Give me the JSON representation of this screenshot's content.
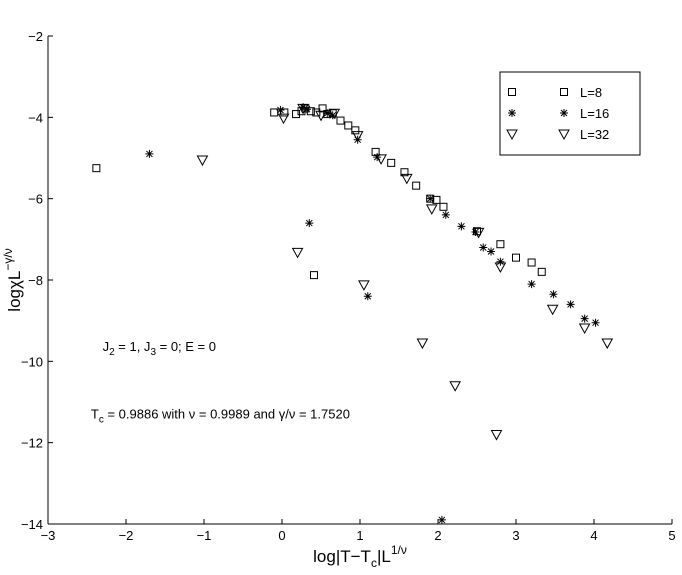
{
  "chart_data": {
    "type": "scatter",
    "xlim": [
      -3,
      5
    ],
    "ylim": [
      -14,
      -2
    ],
    "x_ticks": [
      -3,
      -2,
      -1,
      0,
      1,
      2,
      3,
      4,
      5
    ],
    "y_ticks": [
      -14,
      -12,
      -10,
      -8,
      -6,
      -4,
      -2
    ],
    "x_tick_labels": [
      "−3",
      "−2",
      "−1",
      "0",
      "1",
      "2",
      "3",
      "4",
      "5"
    ],
    "y_tick_labels": [
      "−14",
      "−12",
      "−10",
      "−8",
      "−6",
      "−4",
      "−2"
    ],
    "xlabel": {
      "main": "log|T−T",
      "sub": "c",
      "after": "|L",
      "sup": "1/ν"
    },
    "ylabel": {
      "main": "logχL",
      "sup": "−γ/ν"
    },
    "grid": false,
    "legend_position": "top-right",
    "series": [
      {
        "name": "L=8",
        "marker": "square",
        "points": [
          [
            -2.38,
            -5.25
          ],
          [
            -0.1,
            -3.88
          ],
          [
            0.03,
            -3.88
          ],
          [
            0.18,
            -3.92
          ],
          [
            0.25,
            -3.85
          ],
          [
            0.3,
            -3.78
          ],
          [
            0.37,
            -3.85
          ],
          [
            0.44,
            -3.88
          ],
          [
            0.52,
            -3.78
          ],
          [
            0.58,
            -3.92
          ],
          [
            0.65,
            -3.9
          ],
          [
            0.75,
            -4.08
          ],
          [
            0.85,
            -4.2
          ],
          [
            0.94,
            -4.32
          ],
          [
            1.2,
            -4.85
          ],
          [
            1.4,
            -5.12
          ],
          [
            1.57,
            -5.35
          ],
          [
            1.72,
            -5.68
          ],
          [
            1.9,
            -6.0
          ],
          [
            1.98,
            -6.03
          ],
          [
            2.07,
            -6.2
          ],
          [
            2.5,
            -6.8
          ],
          [
            2.8,
            -7.12
          ],
          [
            3.0,
            -7.45
          ],
          [
            3.2,
            -7.57
          ],
          [
            3.33,
            -7.8
          ],
          [
            0.41,
            -7.88
          ]
        ]
      },
      {
        "name": "L=16",
        "marker": "star",
        "points": [
          [
            -1.7,
            -4.9
          ],
          [
            -0.02,
            -3.82
          ],
          [
            0.27,
            -3.75
          ],
          [
            0.32,
            -3.8
          ],
          [
            0.58,
            -3.9
          ],
          [
            0.65,
            -3.95
          ],
          [
            0.97,
            -4.55
          ],
          [
            1.22,
            -4.98
          ],
          [
            1.9,
            -6.0
          ],
          [
            2.1,
            -6.4
          ],
          [
            2.3,
            -6.68
          ],
          [
            2.48,
            -6.82
          ],
          [
            2.58,
            -7.2
          ],
          [
            2.68,
            -7.3
          ],
          [
            2.8,
            -7.55
          ],
          [
            3.2,
            -8.1
          ],
          [
            3.48,
            -8.35
          ],
          [
            3.7,
            -8.6
          ],
          [
            3.88,
            -8.95
          ],
          [
            4.02,
            -9.05
          ],
          [
            0.35,
            -6.6
          ],
          [
            1.1,
            -8.4
          ],
          [
            2.05,
            -13.9
          ]
        ]
      },
      {
        "name": "L=32",
        "marker": "triangle-down",
        "points": [
          [
            -1.02,
            -5.05
          ],
          [
            0.02,
            -4.02
          ],
          [
            0.27,
            -3.78
          ],
          [
            0.5,
            -3.95
          ],
          [
            0.67,
            -3.9
          ],
          [
            0.97,
            -4.45
          ],
          [
            1.27,
            -5.02
          ],
          [
            1.6,
            -5.5
          ],
          [
            1.92,
            -6.25
          ],
          [
            2.52,
            -6.83
          ],
          [
            2.8,
            -7.68
          ],
          [
            3.47,
            -8.72
          ],
          [
            3.88,
            -9.18
          ],
          [
            4.17,
            -9.55
          ],
          [
            0.2,
            -7.32
          ],
          [
            1.05,
            -8.12
          ],
          [
            1.8,
            -9.55
          ],
          [
            2.22,
            -10.6
          ],
          [
            2.75,
            -11.8
          ]
        ]
      }
    ],
    "annotations": [
      {
        "id": "params",
        "x": -2.3,
        "y": -9.75,
        "parts": [
          {
            "t": "J"
          },
          {
            "t": "2",
            "sub": true
          },
          {
            "t": " = 1, J"
          },
          {
            "t": "3",
            "sub": true
          },
          {
            "t": " = 0; E = 0"
          }
        ]
      },
      {
        "id": "tc",
        "x": -2.45,
        "y": -11.4,
        "parts": [
          {
            "t": "T"
          },
          {
            "t": "c",
            "sub": true
          },
          {
            "t": " = 0.9886 with ν = 0.9989 and γ/ν = 1.7520"
          }
        ]
      }
    ]
  }
}
